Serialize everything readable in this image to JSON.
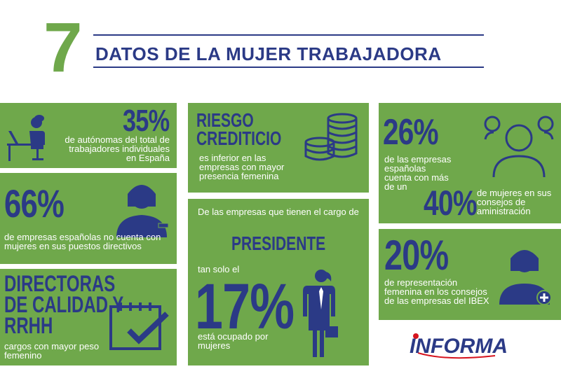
{
  "header": {
    "number": "7",
    "title": "DATOS DE LA MUJER TRABAJADORA"
  },
  "colors": {
    "green": "#6fa84b",
    "navy": "#2b3a86",
    "red": "#d6141e"
  },
  "stats": {
    "autonomas": {
      "value": "35%",
      "text": "de autónomas del total de trabajadores individuales en España"
    },
    "sin_mujeres": {
      "value": "66%",
      "text": "de empresas españolas no cuenta con mujeres en sus puestos directivos"
    },
    "directoras": {
      "title": "DIRECTORAS DE CALIDAD Y RRHH",
      "text": "cargos con mayor peso femenino"
    },
    "riesgo": {
      "title": "RIESGO CREDITICIO",
      "text": "es inferior en las empresas con mayor presencia femenina"
    },
    "presidente": {
      "intro": "De las empresas que tienen el cargo de",
      "keyword": "PRESIDENTE",
      "pre": "tan solo el",
      "value": "17%",
      "post": "está ocupado por mujeres"
    },
    "consejos": {
      "value": "26%",
      "text": "de las empresas españolas cuenta con más de un",
      "value2": "40%",
      "text2": "de mujeres en sus consejos de aministración"
    },
    "ibex": {
      "value": "20%",
      "text": "de representación femenina en los consejos de las empresas del IBEX"
    }
  },
  "logo": {
    "text": "INFORMA"
  },
  "icons": [
    "woman-laptop-icon",
    "woman-bust-icon",
    "calendar-check-icon",
    "coins-stack-icon",
    "businesswoman-icon",
    "group-people-icon",
    "woman-plus-icon"
  ]
}
